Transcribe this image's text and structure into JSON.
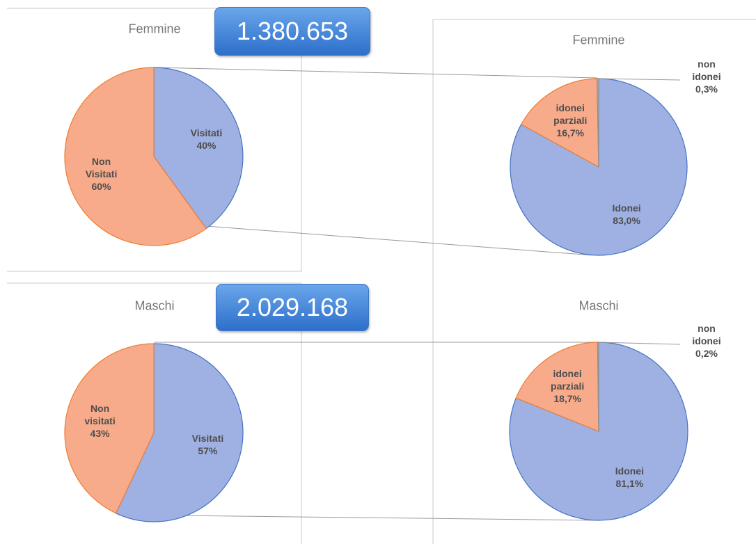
{
  "chart_data": [
    {
      "type": "pie",
      "title": "Femmine",
      "annotation": "1.380.653",
      "categories": [
        "Visitati",
        "Non Visitati"
      ],
      "values": [
        40,
        60
      ],
      "value_labels": [
        "40%",
        "60%"
      ],
      "colors": [
        "#9fb1e2",
        "#f7ab8b"
      ]
    },
    {
      "type": "pie",
      "title": "Femmine",
      "categories": [
        "Idonei",
        "idonei parziali",
        "non idonei"
      ],
      "values": [
        83.0,
        16.7,
        0.3
      ],
      "value_labels": [
        "83,0%",
        "16,7%",
        "0,3%"
      ],
      "colors": [
        "#9fb1e2",
        "#f7ab8b",
        "#b0b0b0"
      ]
    },
    {
      "type": "pie",
      "title": "Maschi",
      "annotation": "2.029.168",
      "categories": [
        "Visitati",
        "Non visitati"
      ],
      "values": [
        57,
        43
      ],
      "value_labels": [
        "57%",
        "43%"
      ],
      "colors": [
        "#9fb1e2",
        "#f7ab8b"
      ]
    },
    {
      "type": "pie",
      "title": "Maschi",
      "categories": [
        "Idonei",
        "idonei parziali",
        "non idonei"
      ],
      "values": [
        81.1,
        18.7,
        0.2
      ],
      "value_labels": [
        "81,1%",
        "18,7%",
        "0,2%"
      ],
      "colors": [
        "#9fb1e2",
        "#f7ab8b",
        "#b0b0b0"
      ]
    }
  ]
}
